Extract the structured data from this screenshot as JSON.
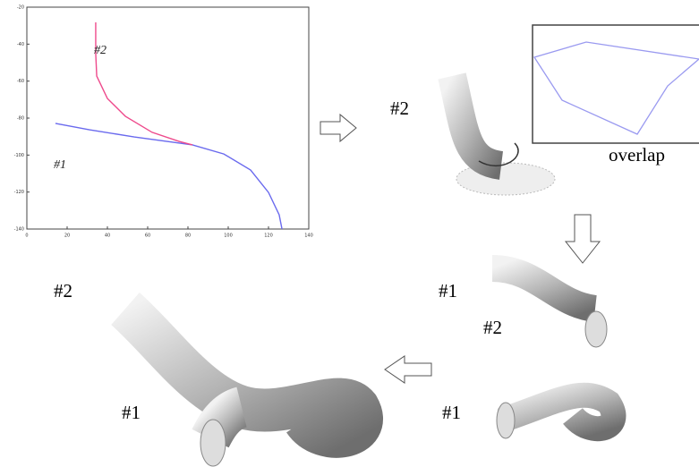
{
  "chart_data": {
    "type": "line",
    "xlim": [
      0,
      140
    ],
    "ylim": [
      -140,
      -20
    ],
    "xticks": [
      0,
      20,
      40,
      60,
      80,
      100,
      120,
      140
    ],
    "yticks": [
      -20,
      -40,
      -60,
      -80,
      -100,
      -120,
      -140
    ],
    "series": [
      {
        "name": "#1",
        "color": "#6a6aee",
        "x": [
          14.2,
          31.1,
          53.3,
          82.2,
          97.8,
          111.1,
          120,
          125.3,
          126.7
        ],
        "values": [
          -82.9,
          -86.3,
          -90.2,
          -94.5,
          -99.4,
          -108.1,
          -120.2,
          -132.3,
          -140
        ]
      },
      {
        "name": "#2",
        "color": "#ee4a8c",
        "x": [
          34.2,
          34.2,
          34.7,
          40,
          48.9,
          62.2,
          75.6,
          82.2
        ],
        "values": [
          -28.2,
          -45.2,
          -57.3,
          -69.4,
          -79,
          -87.7,
          -92.6,
          -94.5
        ]
      }
    ]
  },
  "figure_labels": [
    "#2",
    "overlap",
    "#1",
    "#2",
    "#1",
    "#2",
    "#1"
  ]
}
